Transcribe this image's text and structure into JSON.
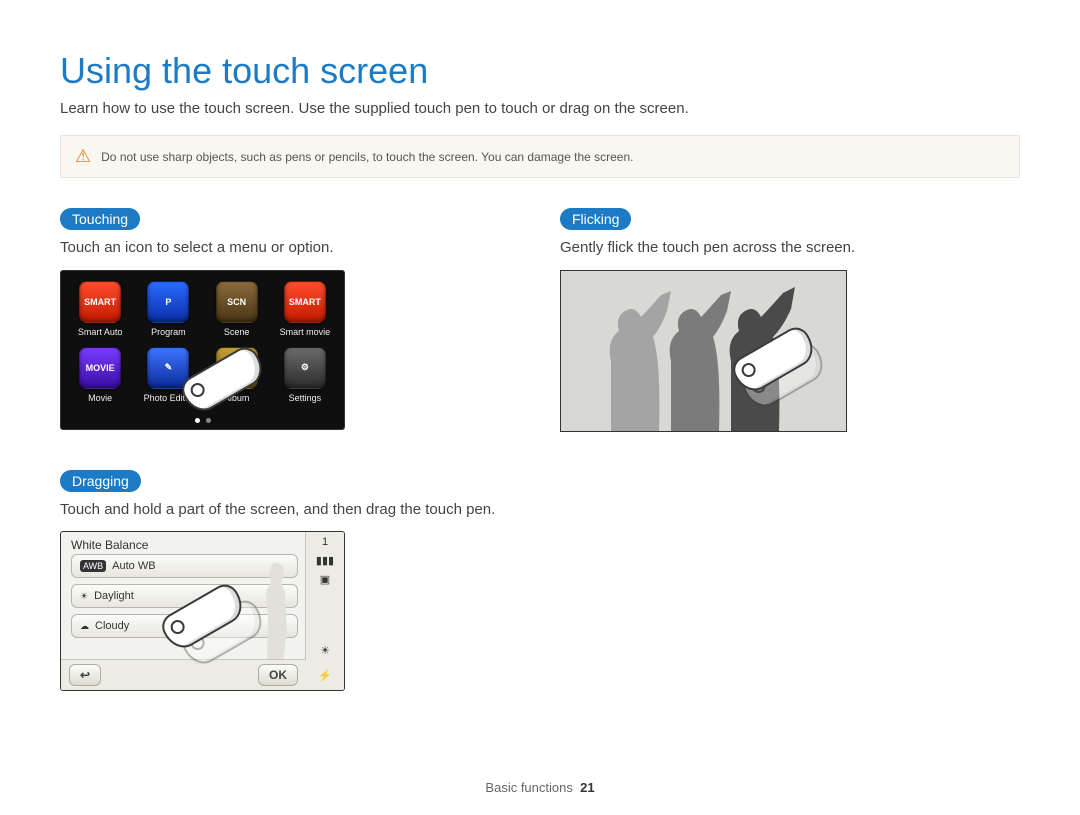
{
  "page": {
    "title": "Using the touch screen",
    "subtitle": "Learn how to use the touch screen. Use the supplied touch pen to touch or drag on the screen.",
    "warning": "Do not use sharp objects, such as pens or pencils, to touch the screen. You can damage the screen.",
    "footer_section": "Basic functions",
    "footer_page": "21",
    "title_color": "#1c7bc4",
    "pill_color": "#1c7bc4",
    "warn_bg": "#faf7f0",
    "warn_border": "#e8e3d8",
    "warn_icon_color": "#e57b2c"
  },
  "touching": {
    "heading": "Touching",
    "desc": "Touch an icon to select a menu or option.",
    "screen_bg": "#0f0f10",
    "apps": [
      {
        "label": "Smart Auto",
        "text": "SMART",
        "bg": "linear-gradient(#ff4d2e,#c21b00)"
      },
      {
        "label": "Program",
        "text": "P",
        "bg": "linear-gradient(#2a6bff,#0b2fa8)"
      },
      {
        "label": "Scene",
        "text": "SCN",
        "bg": "linear-gradient(#8a6b3a,#4a3516)"
      },
      {
        "label": "Smart movie",
        "text": "SMART",
        "bg": "linear-gradient(#ff4d2e,#c21b00)"
      },
      {
        "label": "Movie",
        "text": "MOVIE",
        "bg": "linear-gradient(#7a3bff,#3b0ea8)"
      },
      {
        "label": "Photo Editor",
        "text": "✎",
        "bg": "linear-gradient(#3d74ff,#0c2c99)"
      },
      {
        "label": "Album",
        "text": "▶",
        "bg": "linear-gradient(#c7a23a,#6b4c00)"
      },
      {
        "label": "Settings",
        "text": "⚙",
        "bg": "linear-gradient(#6a6a6a,#2c2c2c)"
      }
    ]
  },
  "flicking": {
    "heading": "Flicking",
    "desc": "Gently flick the touch pen across the screen.",
    "bg": "#d8d8d5",
    "dark": "#4a4a4a",
    "mid": "#7b7b7b",
    "light": "#a4a4a4"
  },
  "dragging": {
    "heading": "Dragging",
    "desc": "Touch and hold a part of the screen, and then drag the touch pen.",
    "panel_title": "White Balance",
    "items": [
      {
        "label": "Auto WB",
        "icon": "AWB",
        "icon_bg": "#333",
        "icon_fg": "#fff"
      },
      {
        "label": "Daylight",
        "icon": "☀",
        "icon_bg": "transparent",
        "icon_fg": "#333"
      },
      {
        "label": "Cloudy",
        "icon": "☁",
        "icon_bg": "transparent",
        "icon_fg": "#333"
      }
    ],
    "side_count": "1",
    "ok_label": "OK",
    "back_label": "↩",
    "side_icons": [
      "▮▮",
      "▣",
      "☀",
      "⚡"
    ]
  }
}
